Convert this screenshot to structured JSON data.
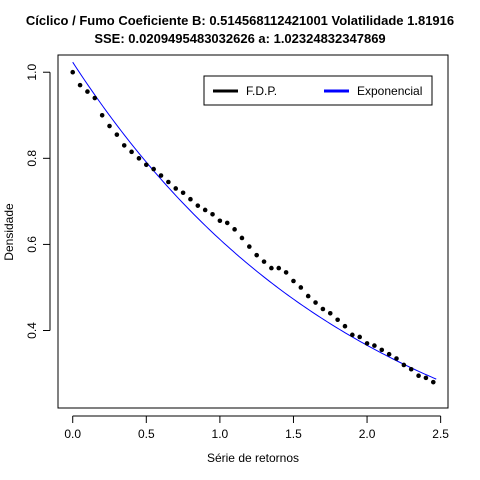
{
  "chart_data": {
    "type": "scatter",
    "title_line1": "Cíclico / Fumo Coeficiente B:  0.514568112421001 Volatilidade 1.81916",
    "title_line2": "SSE: 0.0209495483032626  a:  1.02324832347869",
    "xlabel": "Série de retornos",
    "ylabel": "Densidade",
    "xlim": [
      -0.1,
      2.55
    ],
    "ylim": [
      0.22,
      1.04
    ],
    "x_ticks": [
      0.0,
      0.5,
      1.0,
      1.5,
      2.0,
      2.5
    ],
    "x_tick_labels": [
      "0.0",
      "0.5",
      "1.0",
      "1.5",
      "2.0",
      "2.5"
    ],
    "y_ticks": [
      0.4,
      0.6,
      0.8,
      1.0
    ],
    "y_tick_labels": [
      "0.4",
      "0.6",
      "0.8",
      "1.0"
    ],
    "legend_position": "top-right",
    "series": [
      {
        "name": "F.D.P.",
        "kind": "points",
        "color": "#000000",
        "x": [
          0.0,
          0.05,
          0.1,
          0.15,
          0.2,
          0.25,
          0.3,
          0.35,
          0.4,
          0.45,
          0.5,
          0.55,
          0.6,
          0.65,
          0.7,
          0.75,
          0.8,
          0.85,
          0.9,
          0.95,
          1.0,
          1.05,
          1.1,
          1.15,
          1.2,
          1.25,
          1.3,
          1.35,
          1.4,
          1.45,
          1.5,
          1.55,
          1.6,
          1.65,
          1.7,
          1.75,
          1.8,
          1.85,
          1.9,
          1.95,
          2.0,
          2.05,
          2.1,
          2.15,
          2.2,
          2.25,
          2.3,
          2.35,
          2.4,
          2.45
        ],
        "y": [
          1.0,
          0.97,
          0.955,
          0.94,
          0.9,
          0.875,
          0.855,
          0.83,
          0.815,
          0.8,
          0.785,
          0.775,
          0.76,
          0.745,
          0.73,
          0.72,
          0.705,
          0.69,
          0.68,
          0.67,
          0.655,
          0.65,
          0.635,
          0.615,
          0.595,
          0.575,
          0.56,
          0.545,
          0.545,
          0.535,
          0.515,
          0.5,
          0.48,
          0.465,
          0.45,
          0.44,
          0.425,
          0.41,
          0.39,
          0.385,
          0.37,
          0.365,
          0.355,
          0.345,
          0.335,
          0.32,
          0.31,
          0.295,
          0.29,
          0.28
        ]
      },
      {
        "name": "Exponencial",
        "kind": "line",
        "color": "#0000ff",
        "a": 1.02324832347869,
        "b": 0.514568112421001,
        "x_range": [
          0.0,
          2.47
        ]
      }
    ]
  }
}
